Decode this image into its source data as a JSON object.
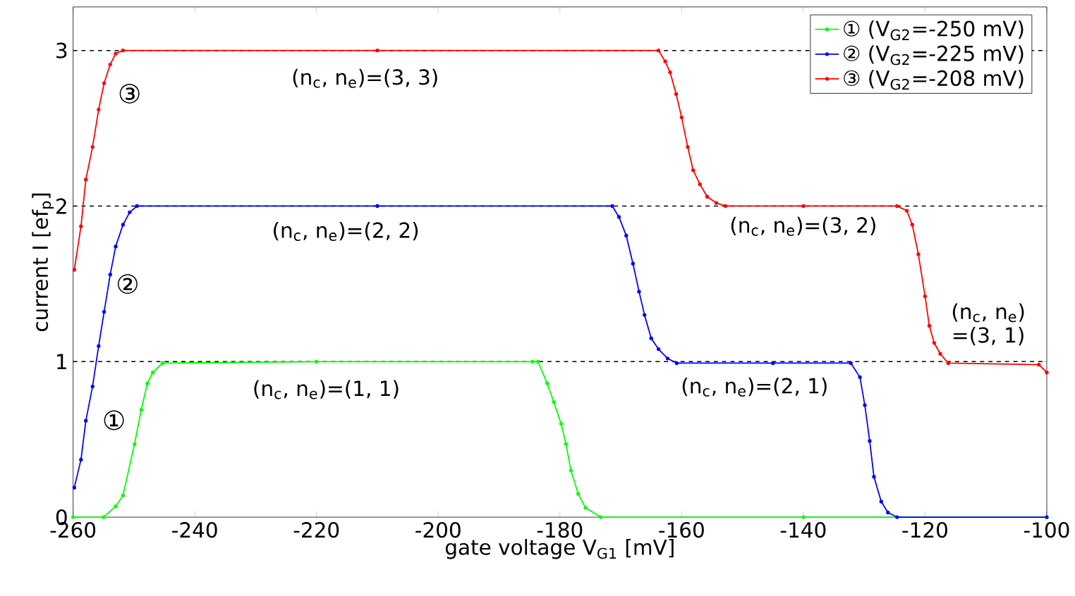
{
  "chart_data": {
    "type": "line",
    "xlabel": "gate voltage V$_{G1}$ [mV]",
    "ylabel": "current I [ef$_{p}$]",
    "xlim": [
      -260,
      -100
    ],
    "ylim": [
      0,
      3.28
    ],
    "xticks": [
      -260,
      -240,
      -220,
      -200,
      -180,
      -160,
      -140,
      -120,
      -100
    ],
    "yticks": [
      0,
      1,
      2,
      3
    ],
    "grid": false,
    "legend": "top right",
    "marker": "circle",
    "line_style": "solid",
    "series": [
      {
        "name": "① (V$_{G2}$=-250 mV)",
        "color": "#00ff00",
        "x": [
          -260,
          -255,
          -253.0,
          -251.8,
          -249.9,
          -248.8,
          -247.8,
          -246.9,
          -245.3,
          -220,
          -184.5,
          -183.6,
          -182.1,
          -181.0,
          -179.8,
          -179.0,
          -178.2,
          -177.0,
          -175.8,
          -173.3,
          -140,
          -100
        ],
        "values": [
          0,
          0,
          0.07,
          0.14,
          0.47,
          0.69,
          0.86,
          0.93,
          0.99,
          1.0,
          1.0,
          1.0,
          0.86,
          0.74,
          0.6,
          0.47,
          0.3,
          0.15,
          0.06,
          0,
          0,
          0
        ]
      },
      {
        "name": "② (V$_{G2}$=-225 mV)",
        "color": "#0000ff",
        "x": [
          -259.8,
          -258.7,
          -257.9,
          -256.8,
          -255.8,
          -254.9,
          -253.9,
          -253.0,
          -251.8,
          -250.7,
          -249.5,
          -210,
          -171.4,
          -170.3,
          -169.1,
          -168.0,
          -167.0,
          -166.1,
          -165.0,
          -163.8,
          -162.3,
          -160.8,
          -145,
          -132.2,
          -130.7,
          -129.9,
          -129.1,
          -128.4,
          -127.2,
          -126.1,
          -124.6,
          -100
        ],
        "values": [
          0.19,
          0.37,
          0.62,
          0.84,
          1.1,
          1.32,
          1.56,
          1.74,
          1.88,
          1.96,
          2.0,
          2.0,
          2.0,
          1.93,
          1.81,
          1.63,
          1.45,
          1.3,
          1.15,
          1.08,
          1.02,
          0.99,
          0.99,
          0.99,
          0.9,
          0.72,
          0.49,
          0.26,
          0.1,
          0.03,
          0,
          0
        ]
      },
      {
        "name": "③ (V$_{G2}$=-208 mV)",
        "color": "#ff0000",
        "x": [
          -259.8,
          -258.7,
          -257.9,
          -256.8,
          -255.8,
          -254.9,
          -253.9,
          -253.0,
          -251.8,
          -210,
          -163.8,
          -162.7,
          -161.9,
          -160.9,
          -160.0,
          -159.0,
          -158.1,
          -157.0,
          -155.8,
          -154.3,
          -152.8,
          -140,
          -124.6,
          -123.0,
          -122.1,
          -121.1,
          -120.0,
          -119.3,
          -118.5,
          -117.5,
          -116.2,
          -101.3,
          -100
        ],
        "values": [
          1.59,
          1.87,
          2.17,
          2.38,
          2.62,
          2.79,
          2.91,
          2.98,
          3.0,
          3.0,
          3.0,
          2.93,
          2.86,
          2.72,
          2.57,
          2.38,
          2.23,
          2.14,
          2.06,
          2.02,
          2.0,
          2.0,
          2.0,
          1.97,
          1.88,
          1.69,
          1.42,
          1.23,
          1.12,
          1.05,
          0.99,
          0.98,
          0.93
        ]
      }
    ],
    "ref_lines": [
      {
        "axis": "y",
        "value": 1,
        "color": "#000000",
        "line_style": "dashed"
      },
      {
        "axis": "y",
        "value": 2,
        "color": "#000000",
        "line_style": "dashed"
      },
      {
        "axis": "y",
        "value": 3,
        "color": "#000000",
        "line_style": "dashed"
      }
    ],
    "annotations": [
      "③",
      "②",
      "①",
      "(n$_{c}$, n$_{e}$)=(3, 3)",
      "(n$_{c}$, n$_{e}$)=(2, 2)",
      "(n$_{c}$, n$_{e}$)=(1, 1)",
      "(n$_{c}$, n$_{e}$)=(3, 2)",
      "(n$_{c}$, n$_{e}$)=(2, 1)",
      "(n$_{c}$, n$_{e}$) =(3, 1)"
    ]
  }
}
